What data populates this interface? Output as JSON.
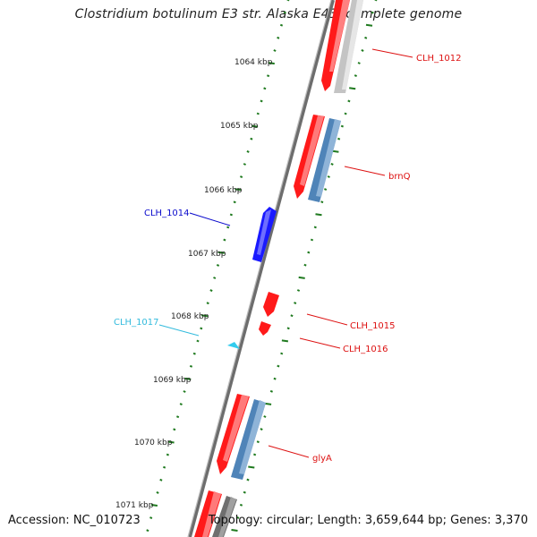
{
  "title": "Clostridium botulinum E3 str. Alaska E43, complete genome",
  "footer": {
    "accession": "Accession: NC_010723",
    "summary": "Topology: circular; Length: 3,659,644 bp; Genes: 3,370"
  },
  "colors": {
    "backbone": "#7a7a7a",
    "tick_ring": "#1f7a1f",
    "forward_gene": "#ff1a1a",
    "reverse_gene": "#1a1aff",
    "rna_gene": "#33ccee",
    "cds_overlay": "#4f84b8",
    "pseudo_gray": "#c8c8c8",
    "dark_gray": "#707070",
    "callout_red": "#dd1111",
    "callout_blue": "#0a0acc",
    "callout_cyan": "#33bbdd"
  },
  "kbp_labels": [
    "1064 kbp",
    "1065 kbp",
    "1066 kbp",
    "1067 kbp",
    "1068 kbp",
    "1069 kbp",
    "1070 kbp",
    "1071 kbp"
  ],
  "gene_labels": [
    {
      "text": "CLH_1012",
      "color": "callout_red"
    },
    {
      "text": "brnQ",
      "color": "callout_red"
    },
    {
      "text": "CLH_1014",
      "color": "callout_blue"
    },
    {
      "text": "CLH_1015",
      "color": "callout_red"
    },
    {
      "text": "CLH_1017",
      "color": "callout_cyan"
    },
    {
      "text": "CLH_1016",
      "color": "callout_red"
    },
    {
      "text": "glyA",
      "color": "callout_red"
    }
  ]
}
